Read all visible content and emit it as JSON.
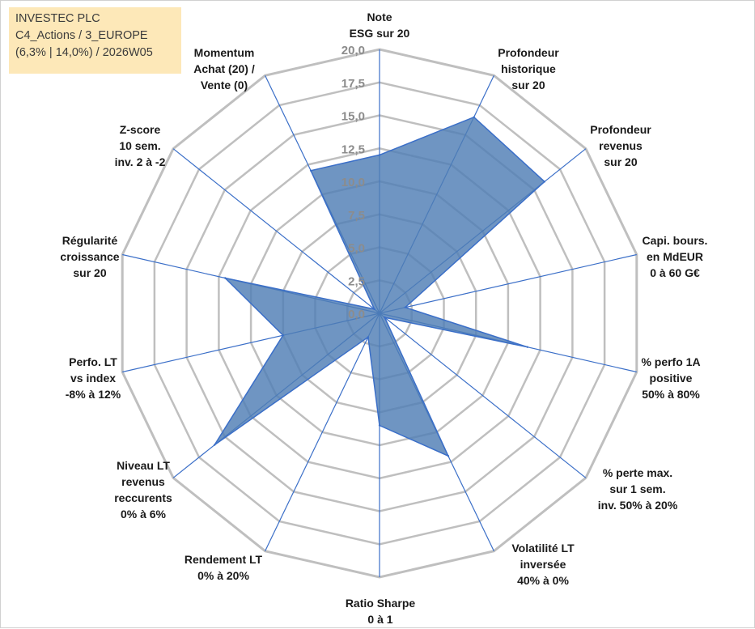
{
  "info": {
    "line1": "INVESTEC PLC",
    "line2": "C4_Actions / 3_EUROPE",
    "line3": "(6,3% | 14,0%) / 2026W05"
  },
  "colors": {
    "fill": "#4f7eb5",
    "stroke": "#3b6fc8",
    "grid": "#bfbfbf",
    "spoke": "#3b6fc8",
    "info_bg": "#fde8b8"
  },
  "chart_data": {
    "type": "radar",
    "title": "",
    "rmin": 0,
    "rmax": 20,
    "tick_labels": [
      "0,0",
      "2,5",
      "5,0",
      "7,5",
      "10,0",
      "12,5",
      "15,0",
      "17,5",
      "20,0"
    ],
    "axes": [
      {
        "label": [
          "Note",
          "ESG sur 20"
        ],
        "value": 12.0
      },
      {
        "label": [
          "Profondeur",
          "historique",
          "sur 20"
        ],
        "value": 16.5
      },
      {
        "label": [
          "Profondeur",
          "revenus",
          "sur 20"
        ],
        "value": 16.0
      },
      {
        "label": [
          "Capi. bours.",
          "en MdEUR",
          "0 à 60 G€"
        ],
        "value": 2.0
      },
      {
        "label": [
          "% perfo 1A",
          "positive",
          "50% à 80%"
        ],
        "value": 11.5
      },
      {
        "label": [
          "% perte max.",
          "sur 1 sem.",
          "inv. 50% à 20%"
        ],
        "value": 0.5
      },
      {
        "label": [
          "Volatilité LT",
          "inversée",
          "40% à 0%"
        ],
        "value": 12.0
      },
      {
        "label": [
          "Ratio Sharpe",
          "0 à 1"
        ],
        "value": 8.5
      },
      {
        "label": [
          "Rendement LT",
          "0% à 20%"
        ],
        "value": 2.0
      },
      {
        "label": [
          "Niveau LT",
          "revenus",
          "reccurents",
          "0% à 6%"
        ],
        "value": 16.0
      },
      {
        "label": [
          "Perfo. LT",
          "vs index",
          "-8% à 12%"
        ],
        "value": 7.5
      },
      {
        "label": [
          "Régularité",
          "croissance",
          "sur 20"
        ],
        "value": 12.0
      },
      {
        "label": [
          "Z-score",
          "10 sem.",
          "inv. 2 à -2"
        ],
        "value": 0.5
      },
      {
        "label": [
          "Momentum",
          "Achat (20) /",
          "Vente (0)"
        ],
        "value": 12.0
      }
    ]
  }
}
